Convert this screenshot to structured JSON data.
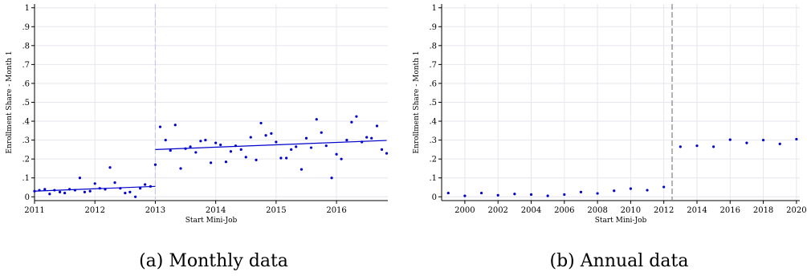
{
  "chart_data": [
    {
      "type": "scatter",
      "caption": "(a) Monthly data",
      "xlabel": "Start Mini-Job",
      "ylabel": "Enrollment Share - Month 1",
      "xlim": [
        2011,
        2016.85
      ],
      "ylim": [
        -0.02,
        1.02
      ],
      "xticks": [
        2011,
        2012,
        2013,
        2014,
        2015,
        2016
      ],
      "xtick_labels": [
        "2011",
        "2012",
        "2013",
        "2014",
        "2015",
        "2016"
      ],
      "yticks": [
        0,
        0.1,
        0.2,
        0.3,
        0.4,
        0.5,
        0.6,
        0.7,
        0.8,
        0.9,
        1
      ],
      "ytick_labels": [
        "0",
        ".1",
        ".2",
        ".3",
        ".4",
        ".5",
        ".6",
        ".7",
        ".8",
        ".9",
        "1"
      ],
      "grid": true,
      "cutoff": 2013,
      "marker_color": "#0000cc",
      "fit_color": "#0000cc",
      "cutoff_color": "#c8c8e6",
      "points": {
        "x": [
          2011.0,
          2011.08,
          2011.17,
          2011.25,
          2011.33,
          2011.42,
          2011.5,
          2011.58,
          2011.67,
          2011.75,
          2011.83,
          2011.92,
          2012.0,
          2012.08,
          2012.17,
          2012.25,
          2012.33,
          2012.42,
          2012.5,
          2012.58,
          2012.67,
          2012.75,
          2012.83,
          2012.92,
          2013.0,
          2013.08,
          2013.17,
          2013.25,
          2013.33,
          2013.42,
          2013.5,
          2013.58,
          2013.67,
          2013.75,
          2013.83,
          2013.92,
          2014.0,
          2014.08,
          2014.17,
          2014.25,
          2014.33,
          2014.42,
          2014.5,
          2014.58,
          2014.67,
          2014.75,
          2014.83,
          2014.92,
          2015.0,
          2015.08,
          2015.17,
          2015.25,
          2015.33,
          2015.42,
          2015.5,
          2015.58,
          2015.67,
          2015.75,
          2015.83,
          2015.92,
          2016.0,
          2016.08,
          2016.17,
          2016.25,
          2016.33,
          2016.42,
          2016.5,
          2016.58,
          2016.67,
          2016.75,
          2016.83
        ],
        "y": [
          0.03,
          0.035,
          0.04,
          0.015,
          0.035,
          0.025,
          0.02,
          0.04,
          0.035,
          0.1,
          0.025,
          0.03,
          0.07,
          0.045,
          0.04,
          0.155,
          0.075,
          0.045,
          0.02,
          0.025,
          0.0,
          0.045,
          0.065,
          0.055,
          0.17,
          0.37,
          0.3,
          0.245,
          0.38,
          0.15,
          0.255,
          0.265,
          0.235,
          0.295,
          0.3,
          0.18,
          0.285,
          0.275,
          0.185,
          0.24,
          0.27,
          0.25,
          0.21,
          0.315,
          0.195,
          0.39,
          0.325,
          0.335,
          0.29,
          0.205,
          0.205,
          0.25,
          0.265,
          0.145,
          0.31,
          0.26,
          0.41,
          0.34,
          0.27,
          0.1,
          0.225,
          0.2,
          0.3,
          0.395,
          0.425,
          0.29,
          0.315,
          0.31,
          0.375,
          0.25,
          0.23
        ]
      },
      "fits": [
        {
          "x": [
            2011.0,
            2013.0
          ],
          "y": [
            0.03,
            0.055
          ]
        },
        {
          "x": [
            2013.0,
            2016.83
          ],
          "y": [
            0.25,
            0.298
          ]
        }
      ]
    },
    {
      "type": "scatter",
      "caption": "(b) Annual data",
      "xlabel": "Start Mini-Job",
      "ylabel": "Enrollment Share - Month 1",
      "xlim": [
        1998.6,
        2020.2
      ],
      "ylim": [
        -0.02,
        1.02
      ],
      "xticks": [
        2000,
        2002,
        2004,
        2006,
        2008,
        2010,
        2012,
        2014,
        2016,
        2018,
        2020
      ],
      "xtick_labels": [
        "2000",
        "2002",
        "2004",
        "2006",
        "2008",
        "2010",
        "2012",
        "2014",
        "2016",
        "2018",
        "2020"
      ],
      "yticks": [
        0,
        0.1,
        0.2,
        0.3,
        0.4,
        0.5,
        0.6,
        0.7,
        0.8,
        0.9,
        1
      ],
      "ytick_labels": [
        "0",
        ".1",
        ".2",
        ".3",
        ".4",
        ".5",
        ".6",
        ".7",
        ".8",
        ".9",
        "1"
      ],
      "grid": true,
      "cutoff": 2012.5,
      "marker_color": "#0000cc",
      "cutoff_color": "#808080",
      "points": {
        "x": [
          1999,
          2000,
          2001,
          2002,
          2003,
          2004,
          2005,
          2006,
          2007,
          2008,
          2009,
          2010,
          2011,
          2012,
          2013,
          2014,
          2015,
          2016,
          2017,
          2018,
          2019,
          2020
        ],
        "y": [
          0.02,
          0.005,
          0.02,
          0.008,
          0.015,
          0.012,
          0.005,
          0.012,
          0.025,
          0.018,
          0.032,
          0.043,
          0.035,
          0.052,
          0.265,
          0.27,
          0.265,
          0.302,
          0.285,
          0.3,
          0.28,
          0.305
        ]
      }
    }
  ]
}
